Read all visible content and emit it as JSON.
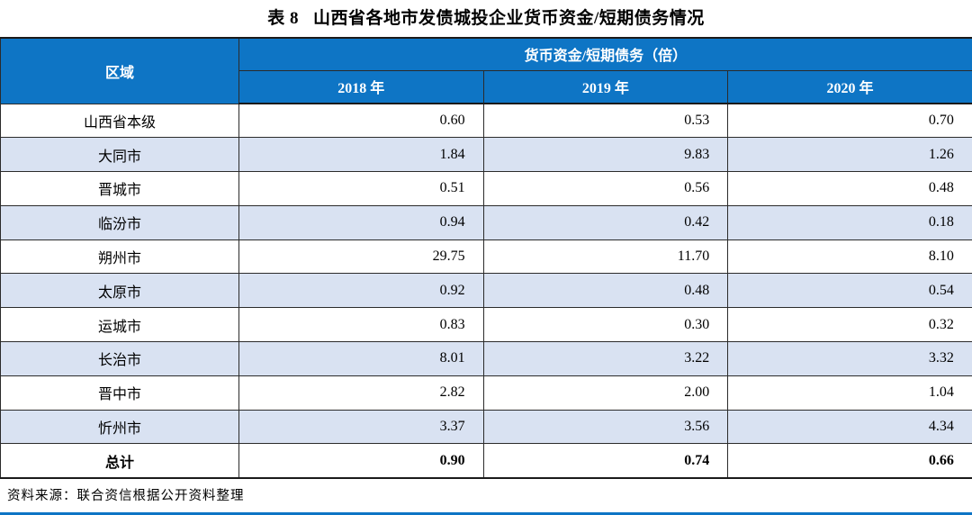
{
  "page": {
    "table_label": "表 8",
    "title": "山西省各地市发债城投企业货币资金/短期债务情况",
    "source_note": "资料来源：联合资信根据公开资料整理"
  },
  "colors": {
    "header_blue": "#0E75C5",
    "stripe_blue": "#D9E2F2",
    "border_dark": "#2B2B2B",
    "bottom_rule_blue": "#0E75C5"
  },
  "chart_data": {
    "type": "table",
    "title": "表 8 山西省各地市发债城投企业货币资金/短期债务情况",
    "group_header": "货币资金/短期债务（倍）",
    "columns": [
      "区域",
      "2018 年",
      "2019 年",
      "2020 年"
    ],
    "rows": [
      {
        "region": "山西省本级",
        "values": [
          "0.60",
          "0.53",
          "0.70"
        ],
        "bold": false
      },
      {
        "region": "大同市",
        "values": [
          "1.84",
          "9.83",
          "1.26"
        ],
        "bold": false
      },
      {
        "region": "晋城市",
        "values": [
          "0.51",
          "0.56",
          "0.48"
        ],
        "bold": false
      },
      {
        "region": "临汾市",
        "values": [
          "0.94",
          "0.42",
          "0.18"
        ],
        "bold": false
      },
      {
        "region": "朔州市",
        "values": [
          "29.75",
          "11.70",
          "8.10"
        ],
        "bold": false
      },
      {
        "region": "太原市",
        "values": [
          "0.92",
          "0.48",
          "0.54"
        ],
        "bold": false
      },
      {
        "region": "运城市",
        "values": [
          "0.83",
          "0.30",
          "0.32"
        ],
        "bold": false
      },
      {
        "region": "长治市",
        "values": [
          "8.01",
          "3.22",
          "3.32"
        ],
        "bold": false
      },
      {
        "region": "晋中市",
        "values": [
          "2.82",
          "2.00",
          "1.04"
        ],
        "bold": false
      },
      {
        "region": "忻州市",
        "values": [
          "3.37",
          "3.56",
          "4.34"
        ],
        "bold": false
      },
      {
        "region": "总计",
        "values": [
          "0.90",
          "0.74",
          "0.66"
        ],
        "bold": true
      }
    ]
  }
}
